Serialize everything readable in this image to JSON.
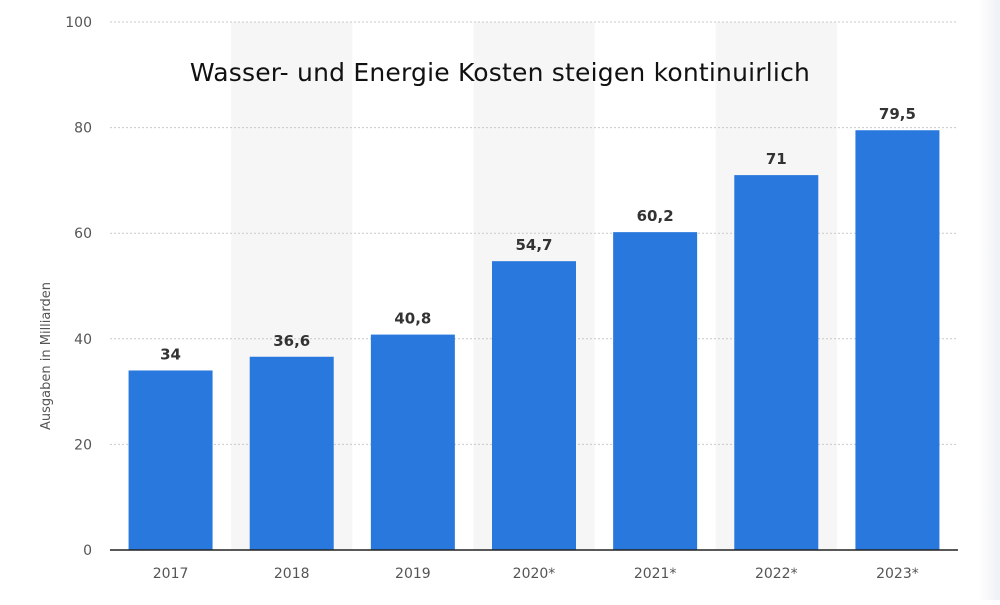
{
  "chart_data": {
    "type": "bar",
    "title": "Wasser- und Energie Kosten steigen kontinuirlich",
    "xlabel": "",
    "ylabel": "Ausgaben in Milliarden",
    "ylim": [
      0,
      100
    ],
    "yticks": [
      0,
      20,
      40,
      60,
      80,
      100
    ],
    "ytick_labels": [
      "0",
      "20",
      "40",
      "60",
      "80",
      "100"
    ],
    "grid": true,
    "categories": [
      "2017",
      "2018",
      "2019",
      "2020*",
      "2021*",
      "2022*",
      "2023*"
    ],
    "values": [
      34,
      36.6,
      40.8,
      54.7,
      60.2,
      71,
      79.5
    ],
    "data_labels": [
      "34",
      "36,6",
      "40,8",
      "54,7",
      "60,2",
      "71",
      "79,5"
    ],
    "bar_color": "#2878de",
    "band_color": "#f6f6f7",
    "grid_color": "#c9c9c9",
    "axis_color": "#222222",
    "tick_label_color": "#555555",
    "data_label_color": "#333333"
  }
}
